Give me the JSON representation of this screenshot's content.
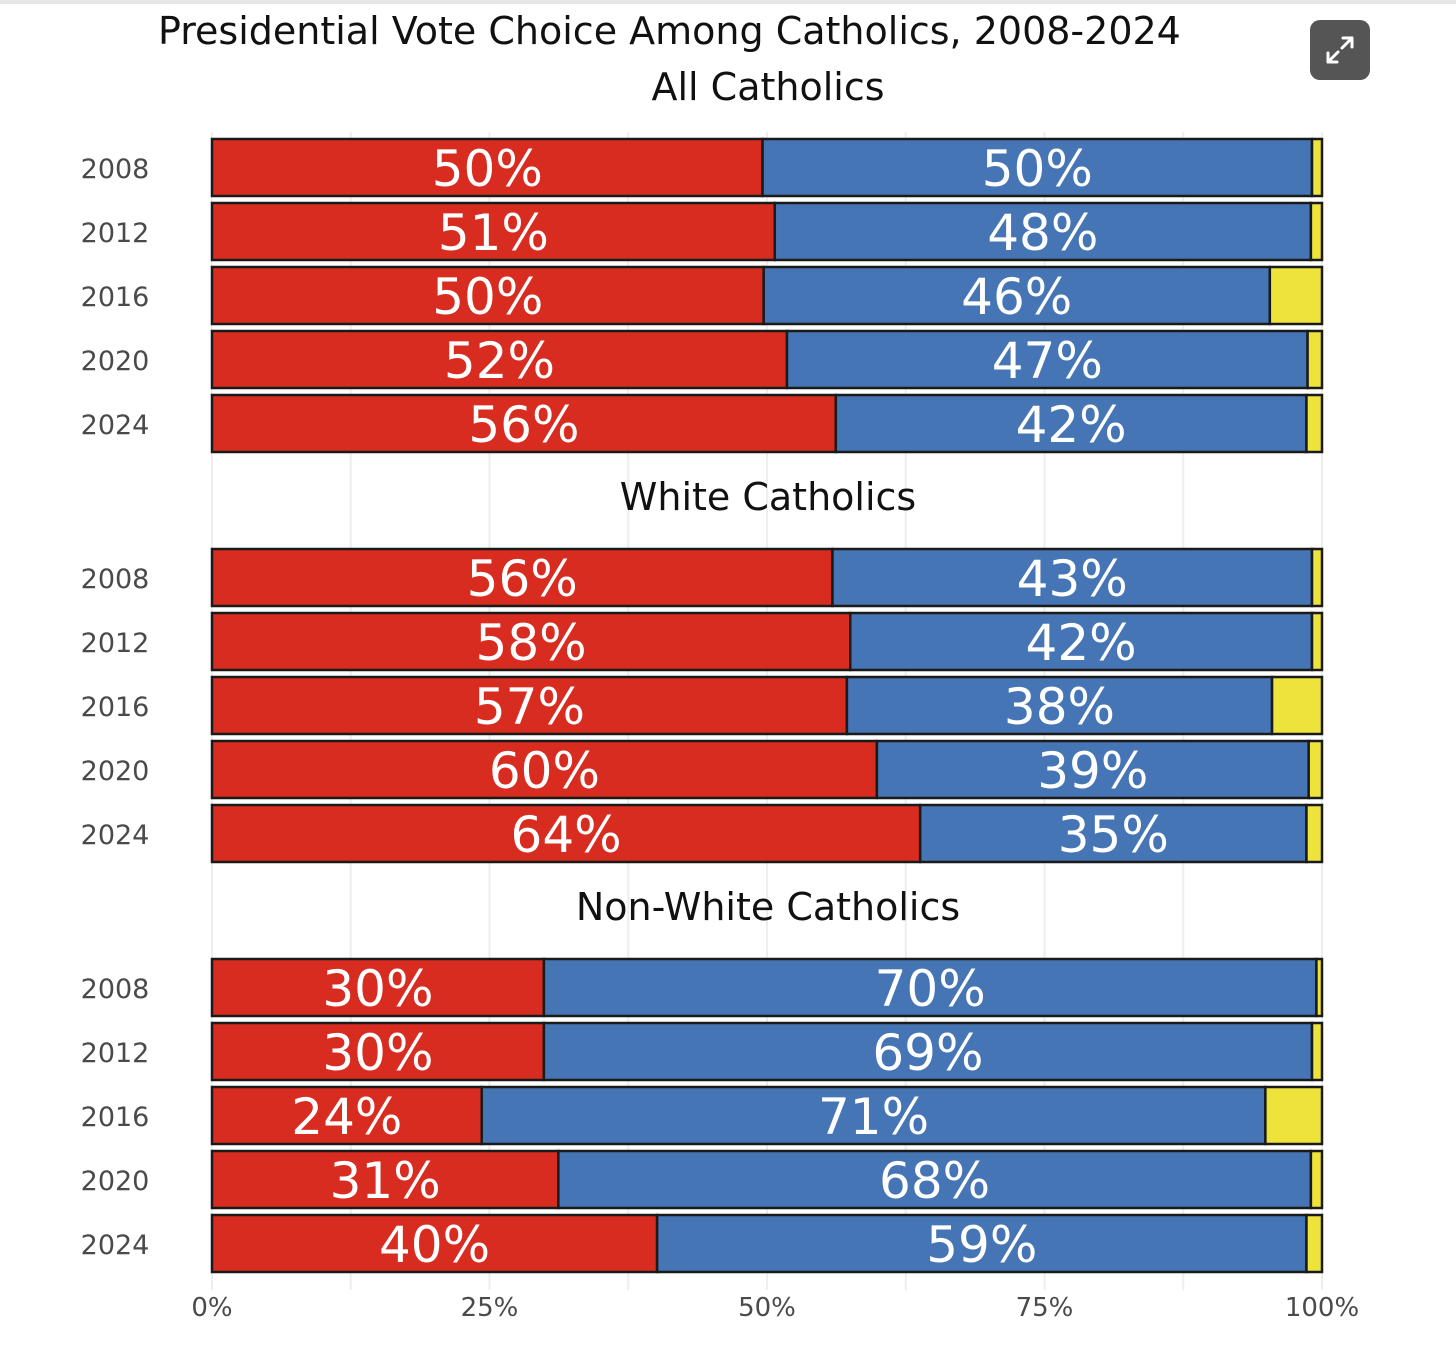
{
  "chart_data": {
    "type": "bar",
    "orientation": "horizontal-stacked",
    "title": "Presidential Vote Choice Among Catholics, 2008-2024",
    "xlim": [
      0,
      100
    ],
    "x_ticks": [
      "0%",
      "25%",
      "50%",
      "75%",
      "100%"
    ],
    "grid": true,
    "colors": {
      "republican": "#d82c20",
      "democrat": "#4575b4",
      "other": "#ede33b"
    },
    "panels": [
      {
        "title": "All Catholics",
        "categories": [
          "2008",
          "2012",
          "2016",
          "2020",
          "2024"
        ],
        "series": [
          {
            "values": [
              49.6,
              50.7,
              49.7,
              51.8,
              56.2
            ],
            "labels": [
              "50%",
              "51%",
              "50%",
              "52%",
              "56%"
            ]
          },
          {
            "values": [
              49.5,
              48.3,
              45.6,
              46.9,
              42.4
            ],
            "labels": [
              "50%",
              "48%",
              "46%",
              "47%",
              "42%"
            ]
          },
          {
            "values": [
              0.9,
              1.0,
              4.7,
              1.3,
              1.4
            ]
          }
        ]
      },
      {
        "title": "White Catholics",
        "categories": [
          "2008",
          "2012",
          "2016",
          "2020",
          "2024"
        ],
        "series": [
          {
            "values": [
              55.9,
              57.5,
              57.2,
              59.9,
              63.8
            ],
            "labels": [
              "56%",
              "58%",
              "57%",
              "60%",
              "64%"
            ]
          },
          {
            "values": [
              43.2,
              41.6,
              38.3,
              38.9,
              34.8
            ],
            "labels": [
              "43%",
              "42%",
              "38%",
              "39%",
              "35%"
            ]
          },
          {
            "values": [
              0.9,
              0.9,
              4.5,
              1.2,
              1.4
            ]
          }
        ]
      },
      {
        "title": "Non-White Catholics",
        "categories": [
          "2008",
          "2012",
          "2016",
          "2020",
          "2024"
        ],
        "series": [
          {
            "values": [
              29.9,
              29.9,
              24.3,
              31.2,
              40.1
            ],
            "labels": [
              "30%",
              "30%",
              "24%",
              "31%",
              "40%"
            ]
          },
          {
            "values": [
              69.6,
              69.2,
              70.6,
              67.8,
              58.5
            ],
            "labels": [
              "70%",
              "69%",
              "71%",
              "68%",
              "59%"
            ]
          },
          {
            "values": [
              0.5,
              0.9,
              5.1,
              1.0,
              1.4
            ]
          }
        ]
      }
    ]
  },
  "ui": {
    "expand_icon": "expand-arrows-icon"
  }
}
